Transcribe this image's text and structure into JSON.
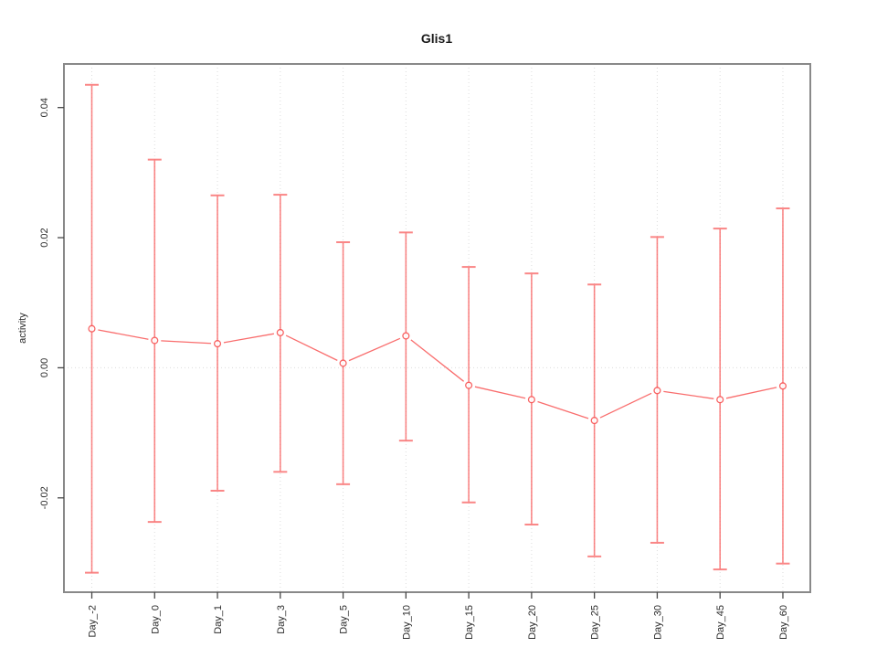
{
  "chart_data": {
    "type": "line",
    "subtype": "points-with-error-bars",
    "title": "Glis1",
    "xlabel": "",
    "ylabel": "activity",
    "categories": [
      "Day_-2",
      "Day_0",
      "Day_1",
      "Day_3",
      "Day_5",
      "Day_10",
      "Day_15",
      "Day_20",
      "Day_25",
      "Day_30",
      "Day_45",
      "Day_60"
    ],
    "series": [
      {
        "name": "activity",
        "values": [
          0.006,
          0.0042,
          0.0037,
          0.0054,
          0.0007,
          0.0049,
          -0.0027,
          -0.0049,
          -0.0081,
          -0.0035,
          -0.0049,
          -0.0028
        ],
        "error_high": [
          0.0435,
          0.032,
          0.0265,
          0.0266,
          0.0193,
          0.0208,
          0.0155,
          0.0145,
          0.0128,
          0.0201,
          0.0214,
          0.0245
        ],
        "error_low": [
          -0.0315,
          -0.0237,
          -0.0189,
          -0.016,
          -0.0179,
          -0.0112,
          -0.0207,
          -0.0241,
          -0.029,
          -0.0269,
          -0.031,
          -0.0301
        ]
      }
    ],
    "yticks": [
      -0.02,
      0,
      0.02,
      0.04
    ],
    "ytick_labels": [
      "-0.02",
      "0.00",
      "0.02",
      "0.04"
    ],
    "ylim": [
      -0.0345,
      0.0467
    ],
    "grid": {
      "vertical_per_category": true,
      "horizontal_at_zero": true,
      "style": "dotted"
    },
    "legend": "none",
    "marker": "open-circle",
    "colors": {
      "series": "#f85454",
      "grid": "#dcdcdc",
      "axis": "#464646",
      "box": "#898989",
      "title": "#1a1a1a",
      "tick_label": "#2b2b2b",
      "background": "#ffffff"
    }
  }
}
